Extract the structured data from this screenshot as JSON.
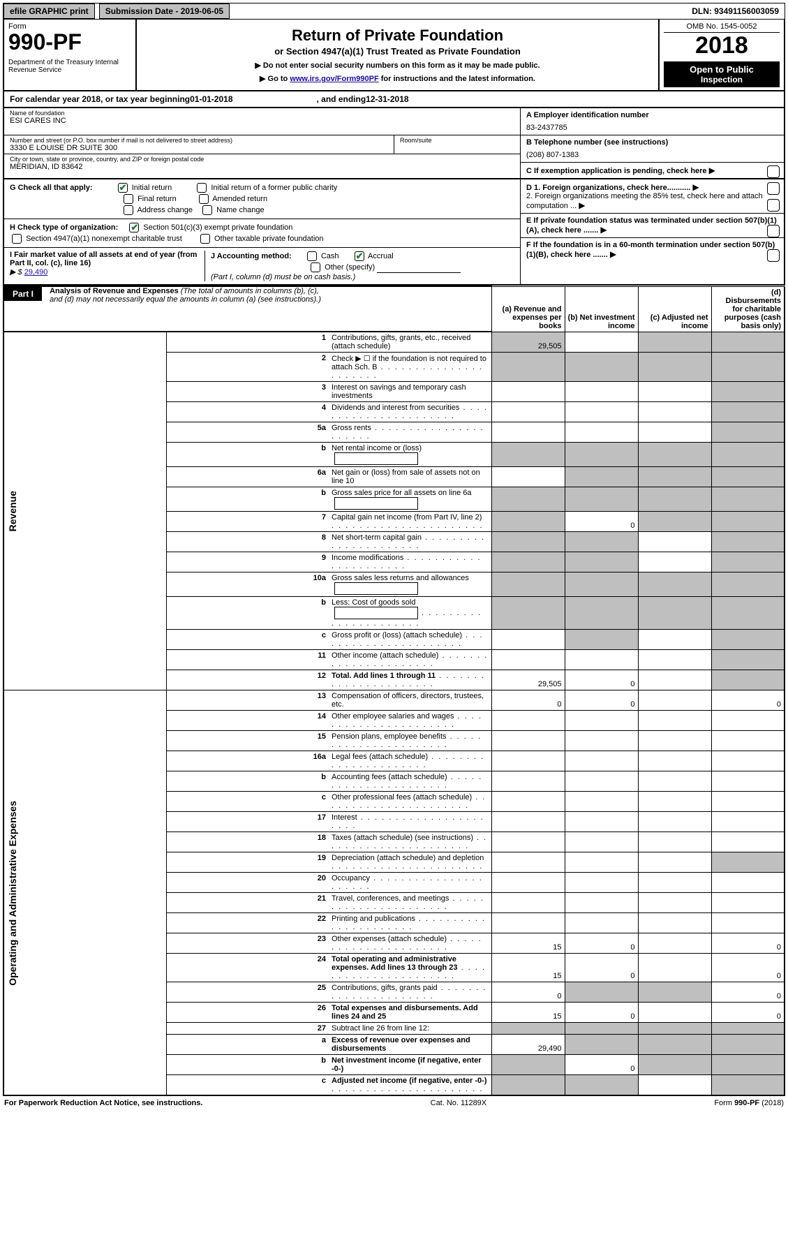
{
  "topbar": {
    "efile": "efile GRAPHIC print",
    "subdate_label": "Submission Date - 2019-06-05",
    "dln": "DLN: 93491156003059"
  },
  "header": {
    "form_word": "Form",
    "form_num": "990-PF",
    "dept": "Department of the Treasury\nInternal Revenue Service",
    "title": "Return of Private Foundation",
    "subtitle": "or Section 4947(a)(1) Trust Treated as Private Foundation",
    "instr1": "▶ Do not enter social security numbers on this form as it may be made public.",
    "instr2_pre": "▶ Go to ",
    "instr2_link": "www.irs.gov/Form990PF",
    "instr2_post": " for instructions and the latest information.",
    "omb": "OMB No. 1545-0052",
    "year": "2018",
    "open1": "Open to Public",
    "open2": "Inspection"
  },
  "cal": {
    "pre": "For calendar year 2018, or tax year beginning ",
    "begin": "01-01-2018",
    "mid": " , and ending ",
    "end": "12-31-2018"
  },
  "identity": {
    "name_lbl": "Name of foundation",
    "name_val": "ESI CARES INC",
    "addr_lbl": "Number and street (or P.O. box number if mail is not delivered to street address)",
    "addr_val": "3330 E LOUISE DR SUITE 300",
    "room_lbl": "Room/suite",
    "city_lbl": "City or town, state or province, country, and ZIP or foreign postal code",
    "city_val": "MERIDIAN, ID  83642",
    "ein_lbl": "A Employer identification number",
    "ein_val": "83-2437785",
    "tel_lbl": "B Telephone number (see instructions)",
    "tel_val": "(208) 807-1383",
    "c_lbl": "C If exemption application is pending, check here"
  },
  "checks": {
    "g_lbl": "G Check all that apply:",
    "g_initial": "Initial return",
    "g_initial_former": "Initial return of a former public charity",
    "g_final": "Final return",
    "g_amended": "Amended return",
    "g_addr": "Address change",
    "g_name": "Name change",
    "h_lbl": "H Check type of organization:",
    "h_501c3": "Section 501(c)(3) exempt private foundation",
    "h_4947": "Section 4947(a)(1) nonexempt charitable trust",
    "h_other": "Other taxable private foundation",
    "i_lbl": "I Fair market value of all assets at end of year (from Part II, col. (c), line 16)",
    "i_arrow": "▶ $",
    "i_val": "29,490",
    "j_lbl": "J Accounting method:",
    "j_cash": "Cash",
    "j_accrual": "Accrual",
    "j_other": "Other (specify)",
    "j_note": "(Part I, column (d) must be on cash basis.)",
    "d_lbl": "D 1. Foreign organizations, check here...........",
    "d2_lbl": "2. Foreign organizations meeting the 85% test, check here and attach computation ...",
    "e_lbl": "E If private foundation status was terminated under section 507(b)(1)(A), check here .......",
    "f_lbl": "F If the foundation is in a 60-month termination under section 507(b)(1)(B), check here ......."
  },
  "part1": {
    "label": "Part I",
    "title": "Analysis of Revenue and Expenses",
    "title_note": "(The total of amounts in columns (b), (c), and (d) may not necessarily equal the amounts in column (a) (see instructions).)",
    "col_a": "(a)   Revenue and expenses per books",
    "col_b": "(b)  Net investment income",
    "col_c": "(c)  Adjusted net income",
    "col_d": "(d)  Disbursements for charitable purposes (cash basis only)",
    "side_rev": "Revenue",
    "side_exp": "Operating and Administrative Expenses"
  },
  "rows": [
    {
      "n": "1",
      "desc": "Contributions, gifts, grants, etc., received (attach schedule)",
      "a": "29,505",
      "b": null,
      "c": null,
      "d": null,
      "sa": true,
      "sc": true,
      "sd": true
    },
    {
      "n": "2",
      "desc": "Check ▶ ☐ if the foundation is not required to attach Sch. B",
      "a": null,
      "b": null,
      "c": null,
      "d": null,
      "sa": true,
      "sb": true,
      "sc": true,
      "sd": true,
      "dots": true
    },
    {
      "n": "3",
      "desc": "Interest on savings and temporary cash investments",
      "a": "",
      "b": "",
      "c": "",
      "d": null,
      "sd": true
    },
    {
      "n": "4",
      "desc": "Dividends and interest from securities",
      "a": "",
      "b": "",
      "c": "",
      "d": null,
      "sd": true,
      "dots": true
    },
    {
      "n": "5a",
      "desc": "Gross rents",
      "a": "",
      "b": "",
      "c": "",
      "d": null,
      "sd": true,
      "dots": true
    },
    {
      "n": "b",
      "desc": "Net rental income or (loss)",
      "a": null,
      "b": null,
      "c": null,
      "d": null,
      "sa": true,
      "sb": true,
      "sc": true,
      "sd": true,
      "inline": true
    },
    {
      "n": "6a",
      "desc": "Net gain or (loss) from sale of assets not on line 10",
      "a": "",
      "b": null,
      "c": null,
      "d": null,
      "sb": true,
      "sc": true,
      "sd": true
    },
    {
      "n": "b",
      "desc": "Gross sales price for all assets on line 6a",
      "a": null,
      "b": null,
      "c": null,
      "d": null,
      "sa": true,
      "sb": true,
      "sc": true,
      "sd": true,
      "inline": true
    },
    {
      "n": "7",
      "desc": "Capital gain net income (from Part IV, line 2)",
      "a": null,
      "b": "0",
      "c": null,
      "d": null,
      "sa": true,
      "sc": true,
      "sd": true,
      "dots": true
    },
    {
      "n": "8",
      "desc": "Net short-term capital gain",
      "a": null,
      "b": null,
      "c": "",
      "d": null,
      "sa": true,
      "sb": true,
      "sd": true,
      "dots": true
    },
    {
      "n": "9",
      "desc": "Income modifications",
      "a": null,
      "b": null,
      "c": "",
      "d": null,
      "sa": true,
      "sb": true,
      "sd": true,
      "dots": true
    },
    {
      "n": "10a",
      "desc": "Gross sales less returns and allowances",
      "a": null,
      "b": null,
      "c": null,
      "d": null,
      "sa": true,
      "sb": true,
      "sc": true,
      "sd": true,
      "inline": true
    },
    {
      "n": "b",
      "desc": "Less: Cost of goods sold",
      "a": null,
      "b": null,
      "c": null,
      "d": null,
      "sa": true,
      "sb": true,
      "sc": true,
      "sd": true,
      "dots": true,
      "inline": true
    },
    {
      "n": "c",
      "desc": "Gross profit or (loss) (attach schedule)",
      "a": "",
      "b": null,
      "c": "",
      "d": null,
      "sb": true,
      "sd": true,
      "dots": true
    },
    {
      "n": "11",
      "desc": "Other income (attach schedule)",
      "a": "",
      "b": "",
      "c": "",
      "d": null,
      "sd": true,
      "dots": true
    },
    {
      "n": "12",
      "desc": "Total. Add lines 1 through 11",
      "a": "29,505",
      "b": "0",
      "c": "",
      "d": null,
      "sd": true,
      "bold": true,
      "dots": true
    },
    {
      "n": "13",
      "desc": "Compensation of officers, directors, trustees, etc.",
      "a": "0",
      "b": "0",
      "c": "",
      "d": "0"
    },
    {
      "n": "14",
      "desc": "Other employee salaries and wages",
      "a": "",
      "b": "",
      "c": "",
      "d": "",
      "dots": true
    },
    {
      "n": "15",
      "desc": "Pension plans, employee benefits",
      "a": "",
      "b": "",
      "c": "",
      "d": "",
      "dots": true
    },
    {
      "n": "16a",
      "desc": "Legal fees (attach schedule)",
      "a": "",
      "b": "",
      "c": "",
      "d": "",
      "dots": true
    },
    {
      "n": "b",
      "desc": "Accounting fees (attach schedule)",
      "a": "",
      "b": "",
      "c": "",
      "d": "",
      "dots": true
    },
    {
      "n": "c",
      "desc": "Other professional fees (attach schedule)",
      "a": "",
      "b": "",
      "c": "",
      "d": "",
      "dots": true
    },
    {
      "n": "17",
      "desc": "Interest",
      "a": "",
      "b": "",
      "c": "",
      "d": "",
      "dots": true
    },
    {
      "n": "18",
      "desc": "Taxes (attach schedule) (see instructions)",
      "a": "",
      "b": "",
      "c": "",
      "d": "",
      "dots": true
    },
    {
      "n": "19",
      "desc": "Depreciation (attach schedule) and depletion",
      "a": "",
      "b": "",
      "c": "",
      "d": null,
      "sd": true,
      "dots": true
    },
    {
      "n": "20",
      "desc": "Occupancy",
      "a": "",
      "b": "",
      "c": "",
      "d": "",
      "dots": true
    },
    {
      "n": "21",
      "desc": "Travel, conferences, and meetings",
      "a": "",
      "b": "",
      "c": "",
      "d": "",
      "dots": true
    },
    {
      "n": "22",
      "desc": "Printing and publications",
      "a": "",
      "b": "",
      "c": "",
      "d": "",
      "dots": true
    },
    {
      "n": "23",
      "desc": "Other expenses (attach schedule)",
      "a": "15",
      "b": "0",
      "c": "",
      "d": "0",
      "dots": true
    },
    {
      "n": "24",
      "desc": "Total operating and administrative expenses. Add lines 13 through 23",
      "a": "15",
      "b": "0",
      "c": "",
      "d": "0",
      "bold": true,
      "dots": true
    },
    {
      "n": "25",
      "desc": "Contributions, gifts, grants paid",
      "a": "0",
      "b": null,
      "c": null,
      "d": "0",
      "sb": true,
      "sc": true,
      "dots": true
    },
    {
      "n": "26",
      "desc": "Total expenses and disbursements. Add lines 24 and 25",
      "a": "15",
      "b": "0",
      "c": "",
      "d": "0",
      "bold": true
    },
    {
      "n": "27",
      "desc": "Subtract line 26 from line 12:",
      "a": null,
      "b": null,
      "c": null,
      "d": null,
      "sa": true,
      "sb": true,
      "sc": true,
      "sd": true
    },
    {
      "n": "a",
      "desc": "Excess of revenue over expenses and disbursements",
      "a": "29,490",
      "b": null,
      "c": null,
      "d": null,
      "sb": true,
      "sc": true,
      "sd": true,
      "bold": true
    },
    {
      "n": "b",
      "desc": "Net investment income (if negative, enter -0-)",
      "a": null,
      "b": "0",
      "c": null,
      "d": null,
      "sa": true,
      "sc": true,
      "sd": true,
      "bold": true
    },
    {
      "n": "c",
      "desc": "Adjusted net income (if negative, enter -0-)",
      "a": null,
      "b": null,
      "c": "",
      "d": null,
      "sa": true,
      "sb": true,
      "sd": true,
      "bold": true,
      "dots": true
    }
  ],
  "footer": {
    "left": "For Paperwork Reduction Act Notice, see instructions.",
    "mid": "Cat. No. 11289X",
    "right_pre": "Form ",
    "right_b": "990-PF",
    "right_post": " (2018)"
  },
  "colors": {
    "grey": "#bfbfbf",
    "check_green": "#1a7a2a",
    "link": "#1a0dab"
  }
}
